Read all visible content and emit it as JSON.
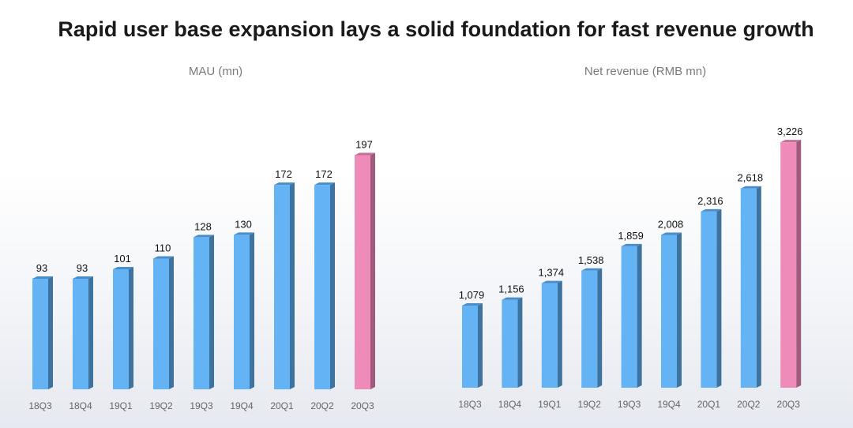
{
  "title": "Rapid user base expansion lays a solid foundation for fast revenue growth",
  "colors": {
    "bar": "#63b3f5",
    "bar_side": "#3d739e",
    "bar_top": "#4a8dc8",
    "highlight": "#ef8bb8",
    "highlight_side": "#a05a7e",
    "highlight_top": "#c46e98"
  },
  "chart_data": [
    {
      "type": "bar",
      "title": "MAU (mn)",
      "categories": [
        "18Q3",
        "18Q4",
        "19Q1",
        "19Q2",
        "19Q3",
        "19Q4",
        "20Q1",
        "20Q2",
        "20Q3"
      ],
      "values": [
        93,
        93,
        101,
        110,
        128,
        130,
        172,
        172,
        197
      ],
      "labels": [
        "93",
        "93",
        "101",
        "110",
        "128",
        "130",
        "172",
        "172",
        "197"
      ],
      "highlight_index": 8,
      "ylim": [
        0,
        200
      ],
      "grid": false,
      "style": "3d"
    },
    {
      "type": "bar",
      "title": "Net revenue (RMB mn)",
      "categories": [
        "18Q3",
        "18Q4",
        "19Q1",
        "19Q2",
        "19Q3",
        "19Q4",
        "20Q1",
        "20Q2",
        "20Q3"
      ],
      "values": [
        1079,
        1156,
        1374,
        1538,
        1859,
        2008,
        2316,
        2618,
        3226
      ],
      "labels": [
        "1,079",
        "1,156",
        "1,374",
        "1,538",
        "1,859",
        "2,008",
        "2,316",
        "2,618",
        "3,226"
      ],
      "highlight_index": 8,
      "ylim": [
        0,
        3300
      ],
      "grid": false,
      "style": "3d"
    }
  ]
}
